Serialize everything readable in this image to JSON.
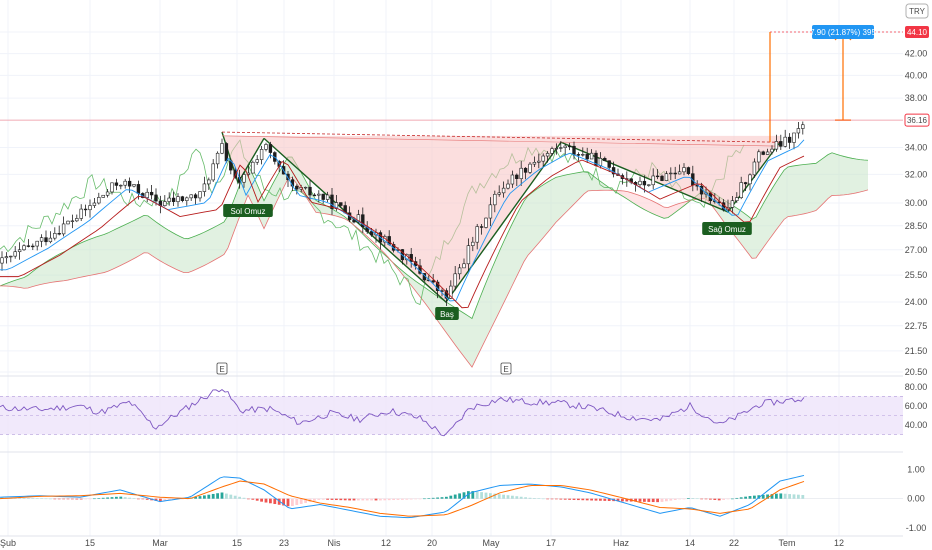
{
  "currency": "TRY",
  "colors": {
    "up": "#26a69a",
    "down": "#ef5350",
    "candle": "#1e1e1e",
    "cloud_bull": "#c8e6c9",
    "cloud_bear": "#ffcdd2",
    "span_a": "#4caf50",
    "span_b": "#e57373",
    "lagging": "#66bb6a",
    "tenkan": "#2196f3",
    "kijun": "#b71c1c",
    "pattern_fill": "#f8c2c2",
    "pattern_line": "#1b5e20",
    "target_line": "#ff6d00",
    "label_bg": "#1b5e20",
    "badge_blue": "#2196f3",
    "badge_red": "#f23645",
    "rsi_line": "#7e57c2",
    "rsi_band": "#ede3fa",
    "macd_line": "#2196f3",
    "signal_line": "#ff6d00",
    "hist_pos": "#26a69a",
    "hist_pos_light": "#b2dfdb",
    "hist_neg": "#ef5350",
    "hist_neg_light": "#ffcdd2"
  },
  "chart_data": [
    {
      "type": "line",
      "panel": "price",
      "y_scale": "log",
      "ylim": [
        20.5,
        44.5
      ],
      "y_ticks": [
        "44.10",
        "42.00",
        "40.00",
        "38.00",
        "36.16",
        "34.00",
        "32.00",
        "30.00",
        "28.50",
        "27.00",
        "25.50",
        "24.00",
        "22.75",
        "21.50",
        "20.50"
      ],
      "x_ticks": [
        "Şub",
        "15",
        "Mar",
        "15",
        "23",
        "Nis",
        "12",
        "20",
        "May",
        "17",
        "Haz",
        "14",
        "22",
        "Tem",
        "12"
      ],
      "current_price": "36.16",
      "target_price": "44.10",
      "measure_label": "7.90 (21.87%) 395",
      "patterns": [
        {
          "name": "Sol Omuz",
          "points": [
            [
              222,
              35.2
            ],
            [
              238,
              31.4
            ],
            [
              264,
              34.7
            ]
          ]
        },
        {
          "name": "Baş",
          "points": [
            [
              264,
              34.7
            ],
            [
              446,
              24.0
            ],
            [
              561,
              34.4
            ]
          ]
        },
        {
          "name": "Sağ Omuz",
          "points": [
            [
              561,
              34.4
            ],
            [
              728,
              29.4
            ],
            [
              780,
              34.4
            ]
          ]
        }
      ],
      "earnings_markers": [
        "E",
        "E"
      ],
      "close_series_x": [
        0,
        40,
        80,
        120,
        160,
        200,
        222,
        238,
        264,
        290,
        320,
        360,
        400,
        446,
        470,
        500,
        530,
        561,
        600,
        640,
        680,
        700,
        728,
        760,
        790,
        805
      ],
      "close_series_y": [
        26.2,
        27.5,
        29.2,
        31.5,
        30.0,
        30.5,
        34.0,
        31.0,
        34.2,
        31.0,
        30.5,
        28.8,
        26.8,
        24.2,
        27.2,
        31.0,
        32.8,
        34.1,
        32.9,
        31.2,
        32.4,
        31.0,
        29.4,
        33.5,
        34.6,
        35.9
      ]
    },
    {
      "type": "line",
      "panel": "rsi",
      "ylim": [
        20,
        85
      ],
      "y_ticks": [
        "80.00",
        "60.00",
        "40.00"
      ],
      "upper_band": 70,
      "lower_band": 30,
      "series_x": [
        0,
        40,
        80,
        100,
        130,
        155,
        190,
        222,
        240,
        270,
        300,
        330,
        360,
        390,
        420,
        446,
        470,
        500,
        530,
        560,
        590,
        630,
        660,
        690,
        720,
        740,
        760,
        790,
        805
      ],
      "series_y": [
        58,
        56,
        60,
        53,
        64,
        37,
        60,
        80,
        55,
        57,
        42,
        52,
        46,
        55,
        47,
        28,
        58,
        67,
        64,
        63,
        58,
        48,
        45,
        60,
        40,
        50,
        62,
        66,
        67
      ]
    },
    {
      "type": "bar",
      "panel": "macd",
      "ylim": [
        -1.0,
        1.25
      ],
      "y_ticks": [
        "1.00",
        "0.00",
        "-1.00"
      ],
      "macd_x": [
        0,
        40,
        80,
        120,
        160,
        190,
        222,
        240,
        264,
        290,
        320,
        350,
        380,
        410,
        446,
        470,
        500,
        530,
        561,
        590,
        620,
        660,
        690,
        720,
        750,
        780,
        805
      ],
      "macd_y": [
        0.05,
        0.1,
        0.05,
        0.3,
        -0.1,
        0.05,
        0.75,
        0.7,
        0.3,
        -0.35,
        -0.2,
        -0.4,
        -0.6,
        -0.65,
        -0.45,
        0.2,
        0.45,
        0.5,
        0.4,
        0.2,
        -0.1,
        -0.5,
        -0.3,
        -0.6,
        -0.2,
        0.6,
        0.8
      ],
      "signal_x": [
        0,
        40,
        80,
        120,
        160,
        190,
        222,
        240,
        264,
        290,
        320,
        350,
        380,
        410,
        446,
        470,
        500,
        530,
        561,
        590,
        620,
        660,
        690,
        720,
        750,
        780,
        805
      ],
      "signal_y": [
        0.0,
        0.08,
        0.1,
        0.18,
        0.05,
        0.0,
        0.4,
        0.6,
        0.5,
        0.1,
        -0.15,
        -0.3,
        -0.5,
        -0.6,
        -0.55,
        -0.25,
        0.2,
        0.45,
        0.45,
        0.3,
        0.05,
        -0.3,
        -0.35,
        -0.5,
        -0.35,
        0.3,
        0.6
      ]
    }
  ]
}
